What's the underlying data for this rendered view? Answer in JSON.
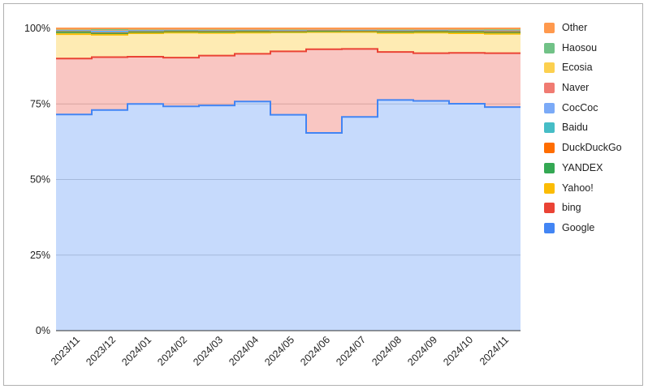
{
  "chart_data": {
    "type": "area",
    "stacked": "percent",
    "step": true,
    "title": "",
    "xlabel": "",
    "ylabel": "",
    "grid": true,
    "legend_position": "right",
    "x": [
      "2023/11",
      "2023/12",
      "2024/01",
      "2024/02",
      "2024/03",
      "2024/04",
      "2024/05",
      "2024/06",
      "2024/07",
      "2024/08",
      "2024/09",
      "2024/10",
      "2024/11"
    ],
    "ylim": [
      0,
      100
    ],
    "y_ticks": [
      "0%",
      "25%",
      "50%",
      "75%",
      "100%"
    ],
    "y_tick_values": [
      0,
      25,
      50,
      75,
      100
    ],
    "series": [
      {
        "name": "Google",
        "color": "#4285F4",
        "values": [
          71.5,
          73,
          75,
          74.2,
          74.5,
          75.8,
          71.4,
          65.4,
          70.7,
          76.3,
          76.0,
          75.0,
          73.8
        ]
      },
      {
        "name": "bing",
        "color": "#EA4335",
        "values": [
          18.5,
          17.5,
          15.6,
          16.1,
          16.5,
          15.8,
          21.0,
          27.7,
          22.5,
          15.9,
          15.8,
          16.8,
          17.8
        ]
      },
      {
        "name": "Yahoo!",
        "color": "#FBBC04",
        "values": [
          8.1,
          7.4,
          7.8,
          8.3,
          7.5,
          7.0,
          6.3,
          5.7,
          5.6,
          6.3,
          6.8,
          6.5,
          6.4
        ]
      },
      {
        "name": "YANDEX",
        "color": "#34A853",
        "values": [
          0.6,
          0.5,
          0.4,
          0.4,
          0.4,
          0.4,
          0.3,
          0.3,
          0.3,
          0.4,
          0.4,
          0.5,
          0.5
        ]
      },
      {
        "name": "DuckDuckGo",
        "color": "#FF6D01",
        "values": [
          0.4,
          0.3,
          0.3,
          0.3,
          0.3,
          0.3,
          0.2,
          0.3,
          0.2,
          0.3,
          0.3,
          0.3,
          0.3
        ]
      },
      {
        "name": "Baidu",
        "color": "#46BDC6",
        "values": [
          0.2,
          0.2,
          0.2,
          0.2,
          0.2,
          0.2,
          0.2,
          0.2,
          0.2,
          0.2,
          0.2,
          0.2,
          0.3
        ]
      },
      {
        "name": "CocCoc",
        "color": "#7BAAF7",
        "values": [
          0.2,
          0.2,
          0.2,
          0.2,
          0.2,
          0.2,
          0.2,
          0.1,
          0.2,
          0.2,
          0.2,
          0.2,
          0.2
        ]
      },
      {
        "name": "Naver",
        "color": "#F07B72",
        "values": [
          0.2,
          0.4,
          0.2,
          0.1,
          0.1,
          0.1,
          0.1,
          0.1,
          0.1,
          0.1,
          0.1,
          0.1,
          0.1
        ]
      },
      {
        "name": "Ecosia",
        "color": "#FCD04F",
        "values": [
          0.1,
          0.1,
          0.1,
          0.1,
          0.1,
          0.1,
          0.1,
          0.1,
          0.1,
          0.1,
          0.1,
          0.1,
          0.1
        ]
      },
      {
        "name": "Haosou",
        "color": "#71C287",
        "values": [
          0.1,
          0.1,
          0.1,
          0.1,
          0.1,
          0.1,
          0.1,
          0.1,
          0.1,
          0.1,
          0.1,
          0.1,
          0.1
        ]
      },
      {
        "name": "Other",
        "color": "#FF994D",
        "values": [
          0.1,
          0.3,
          0.1,
          0.0,
          0.1,
          0.0,
          0.1,
          0.0,
          0.0,
          0.1,
          0.0,
          0.1,
          0.2
        ]
      }
    ],
    "legend_order": [
      "Other",
      "Haosou",
      "Ecosia",
      "Naver",
      "CocCoc",
      "Baidu",
      "DuckDuckGo",
      "YANDEX",
      "Yahoo!",
      "bing",
      "Google"
    ]
  }
}
